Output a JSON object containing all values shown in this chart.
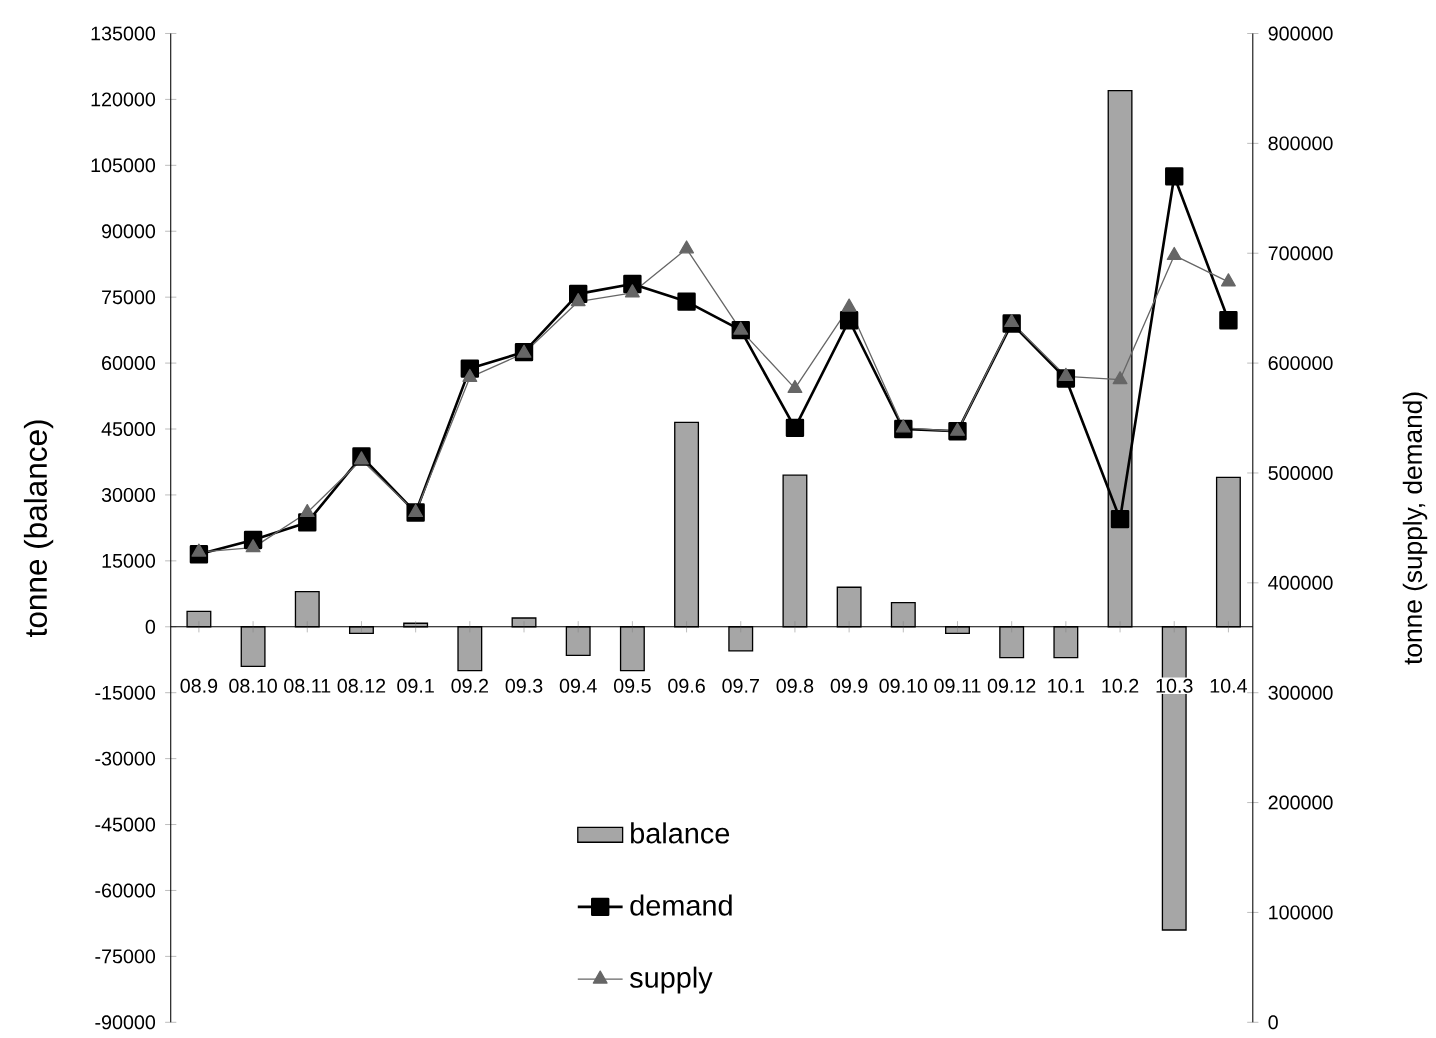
{
  "chart_data": {
    "type": "bar",
    "categories": [
      "08.9",
      "08.10",
      "08.11",
      "08.12",
      "09.1",
      "09.2",
      "09.3",
      "09.4",
      "09.5",
      "09.6",
      "09.7",
      "09.8",
      "09.9",
      "09.10",
      "09.11",
      "09.12",
      "10.1",
      "10.2",
      "10.3",
      "10.4"
    ],
    "series": [
      {
        "name": "balance",
        "color": "#a6a6a6",
        "values": [
          3500,
          -9000,
          8000,
          -1500,
          800,
          -10000,
          2000,
          -6500,
          -10000,
          46500,
          -5500,
          34500,
          9000,
          5500,
          -1500,
          -7000,
          -7000,
          122000,
          -69000,
          34000
        ]
      },
      {
        "name": "demand",
        "type": "line",
        "axis": "y2",
        "color": "#000000",
        "marker": "square",
        "values": [
          426000,
          439000,
          455000,
          515000,
          464000,
          595000,
          610000,
          663000,
          672000,
          656000,
          630000,
          541000,
          639000,
          540000,
          538000,
          636000,
          586000,
          458000,
          770000,
          639000
        ]
      },
      {
        "name": "supply",
        "type": "line",
        "axis": "y2",
        "color": "#666666",
        "marker": "triangle",
        "values": [
          428000,
          432000,
          464000,
          512000,
          464000,
          587000,
          609000,
          656000,
          664000,
          704000,
          630000,
          577000,
          651000,
          541000,
          538000,
          637000,
          588000,
          585000,
          698000,
          674000
        ]
      }
    ],
    "ylabel": "tonne (balance)",
    "y2label": "tonne (supply, demand)",
    "ylim": [
      -90000,
      135000
    ],
    "yticks": [
      -90000,
      -75000,
      -60000,
      -45000,
      -30000,
      -15000,
      0,
      15000,
      30000,
      45000,
      60000,
      75000,
      90000,
      105000,
      120000,
      135000
    ],
    "y2lim": [
      0,
      900000
    ],
    "y2ticks": [
      0,
      100000,
      200000,
      300000,
      400000,
      500000,
      600000,
      700000,
      800000,
      900000
    ],
    "legend": "bottom"
  }
}
